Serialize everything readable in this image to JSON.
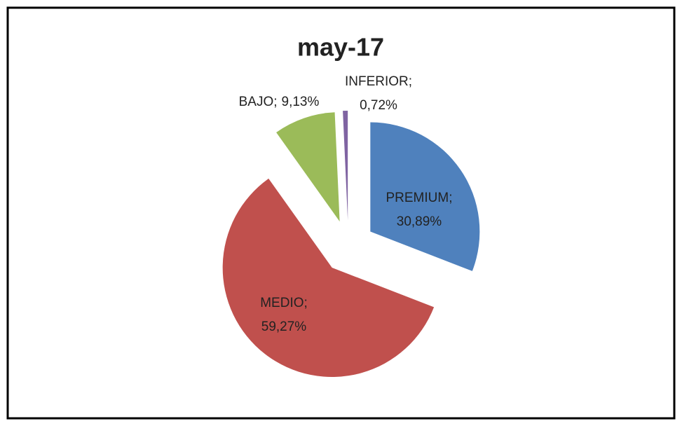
{
  "chart_data": {
    "type": "pie",
    "title": "may-17",
    "categories": [
      "PREMIUM",
      "MEDIO",
      "BAJO",
      "INFERIOR"
    ],
    "values": [
      30.89,
      59.27,
      9.13,
      0.72
    ],
    "value_labels": [
      "30,89%",
      "59,27%",
      "9,13%",
      "0,72%"
    ],
    "separator": ";",
    "colors": [
      "#4f81bd",
      "#c0504d",
      "#9bbb59",
      "#8064a2"
    ],
    "explode": true
  }
}
